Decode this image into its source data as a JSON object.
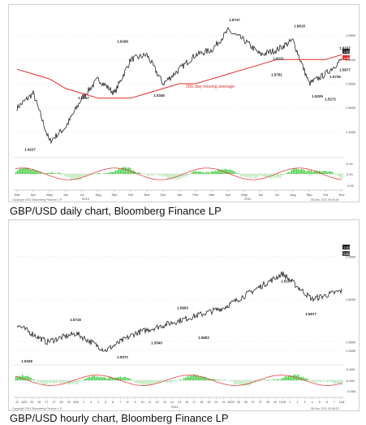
{
  "charts": [
    {
      "caption": "GBP/USD daily chart, Bloomberg Finance LP",
      "copyright": "Copyright 2011 Bloomberg Finance L.P.",
      "stamp": "08-Nov-2011 09:40:48",
      "ma_label": "200 day moving average",
      "ylim": [
        1.4,
        1.7
      ],
      "yticks": [
        "1.6500",
        "1.6000",
        "1.5500",
        "1.5000",
        "1.4500"
      ],
      "osc_ticks": [
        "0.02",
        "0.00",
        "-0.02"
      ],
      "xticks": [
        "Mar",
        "Apr",
        "May",
        "Jun",
        "Jul",
        "Aug",
        "Sep",
        "Oct",
        "Nov",
        "Dec",
        "Jan",
        "Feb",
        "Mar",
        "Apr",
        "May",
        "Jun",
        "Jul",
        "Aug",
        "Sep",
        "Oct",
        "Nov"
      ],
      "years": [
        "2010",
        "2011"
      ],
      "last_values": [
        "1.6026",
        "1.5811"
      ],
      "annotations": [
        "1.4227",
        "1.5297",
        "1.6299",
        "1.5345",
        "1.6747",
        "1.5781",
        "1.6618",
        "1.6111",
        "1.5329",
        "1.5272",
        "1.5735",
        "1.5877",
        "1.6167"
      ]
    },
    {
      "caption": "GBP/USD hourly chart, Bloomberg Finance LP",
      "copyright": "Copyright 2011 Bloomberg Finance L.P.",
      "stamp": "08-Nov-2011 09:46:23",
      "ylim": [
        1.525,
        1.685
      ],
      "yticks": [
        "1.6500",
        "1.6000",
        "1.5500",
        "1.5400"
      ],
      "osc_ticks": [
        "0.005",
        "0.000",
        "-0.005"
      ],
      "xticks": [
        "22",
        "8/22",
        "25",
        "26",
        "27",
        "27",
        "28",
        "29",
        "9/30",
        "2",
        "3",
        "4",
        "5",
        "6",
        "7",
        "8",
        "9",
        "10",
        "11",
        "12",
        "13",
        "14",
        "15",
        "16",
        "17",
        "18",
        "19",
        "20",
        "21",
        "10/22",
        "25",
        "26",
        "27",
        "27",
        "28",
        "29",
        "10/31",
        "1",
        "2",
        "3",
        "4",
        "5",
        "6",
        "7",
        "11/8"
      ],
      "year": "2011",
      "last_values": [
        "1.6050",
        "1.6020"
      ],
      "annotations": [
        "1.5328",
        "1.5716",
        "1.5372",
        "1.5540",
        "1.5853",
        "1.5602",
        "1.6167",
        "1.5877"
      ]
    }
  ],
  "chart_data": [
    {
      "type": "line",
      "title": "GBP/USD daily chart",
      "x": [
        "Mar 2010",
        "Apr 2010",
        "May 2010",
        "Jun 2010",
        "Jul 2010",
        "Aug 2010",
        "Sep 2010",
        "Oct 2010",
        "Nov 2010",
        "Dec 2010",
        "Jan 2011",
        "Feb 2011",
        "Mar 2011",
        "Apr 2011",
        "May 2011",
        "Jun 2011",
        "Jul 2011",
        "Aug 2011",
        "Sep 2011",
        "Oct 2011",
        "Nov 2011"
      ],
      "series": [
        {
          "values": [
            1.5,
            1.53,
            1.43,
            1.46,
            1.52,
            1.56,
            1.53,
            1.6,
            1.61,
            1.55,
            1.58,
            1.61,
            1.62,
            1.66,
            1.64,
            1.61,
            1.62,
            1.64,
            1.55,
            1.57,
            1.6
          ]
        },
        {
          "name": "200 day moving average",
          "values": [
            1.58,
            1.57,
            1.56,
            1.54,
            1.53,
            1.52,
            1.52,
            1.52,
            1.53,
            1.54,
            1.55,
            1.55,
            1.56,
            1.57,
            1.58,
            1.59,
            1.6,
            1.6,
            1.6,
            1.6,
            1.61
          ]
        }
      ],
      "ylim": [
        1.4,
        1.7
      ],
      "grid": true
    },
    {
      "type": "line",
      "title": "GBP/USD hourly chart",
      "x": [
        "8/22",
        "8/29",
        "9/5",
        "9/12",
        "9/19",
        "9/26",
        "10/3",
        "10/10",
        "10/17",
        "10/24",
        "10/31",
        "11/7"
      ],
      "series": [
        {
          "values": [
            1.57,
            1.55,
            1.56,
            1.54,
            1.56,
            1.57,
            1.58,
            1.59,
            1.61,
            1.63,
            1.6,
            1.61
          ]
        }
      ],
      "ylim": [
        1.525,
        1.685
      ],
      "grid": true
    }
  ]
}
